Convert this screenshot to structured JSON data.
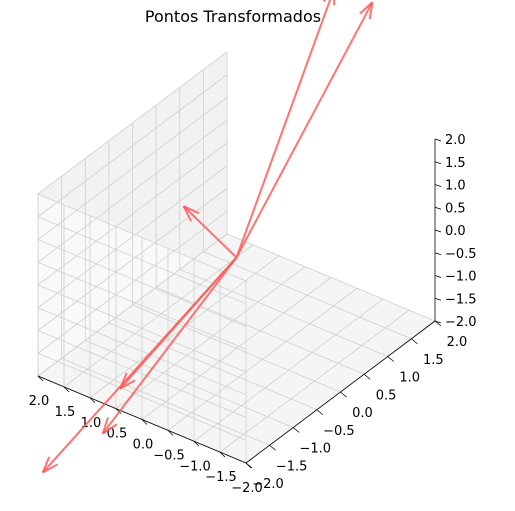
{
  "chart_data": {
    "type": "3d-quiver",
    "title": "Pontos Transformados",
    "xlabel": "",
    "ylabel": "",
    "zlabel": "",
    "xlim": [
      -2,
      2
    ],
    "ylim": [
      -2,
      2
    ],
    "zlim": [
      -2,
      2
    ],
    "x_ticks": [
      "−2.0",
      "−1.5",
      "−1.0",
      "−0.5",
      "0.0",
      "0.5",
      "1.0",
      "1.5",
      "2.0"
    ],
    "y_ticks": [
      "−2.0",
      "−1.5",
      "−1.0",
      "−0.5",
      "0.0",
      "0.5",
      "1.0",
      "1.5",
      "2.0"
    ],
    "z_ticks": [
      "−2.0",
      "−1.5",
      "−1.0",
      "−0.5",
      "0.0",
      "0.5",
      "1.0",
      "1.5",
      "2.0"
    ],
    "grid": true,
    "series_color": "#ff5a5a",
    "arrows": [
      {
        "origin": [
          0,
          0,
          0
        ],
        "vector": [
          0.3,
          2.4,
          3.9
        ]
      },
      {
        "origin": [
          0,
          0,
          0
        ],
        "vector": [
          -0.25,
          2.6,
          3.7
        ]
      },
      {
        "origin": [
          0,
          0,
          0
        ],
        "vector": [
          1.3,
          -1.4,
          -3.4
        ]
      },
      {
        "origin": [
          0,
          0,
          0
        ],
        "vector": [
          1.6,
          -0.7,
          -3.1
        ]
      },
      {
        "origin": [
          0,
          0,
          0
        ],
        "vector": [
          2.0,
          -1.9,
          -4.2
        ]
      },
      {
        "origin": [
          0,
          0,
          0
        ],
        "vector": [
          1.2,
          0.2,
          0.4
        ]
      }
    ]
  }
}
